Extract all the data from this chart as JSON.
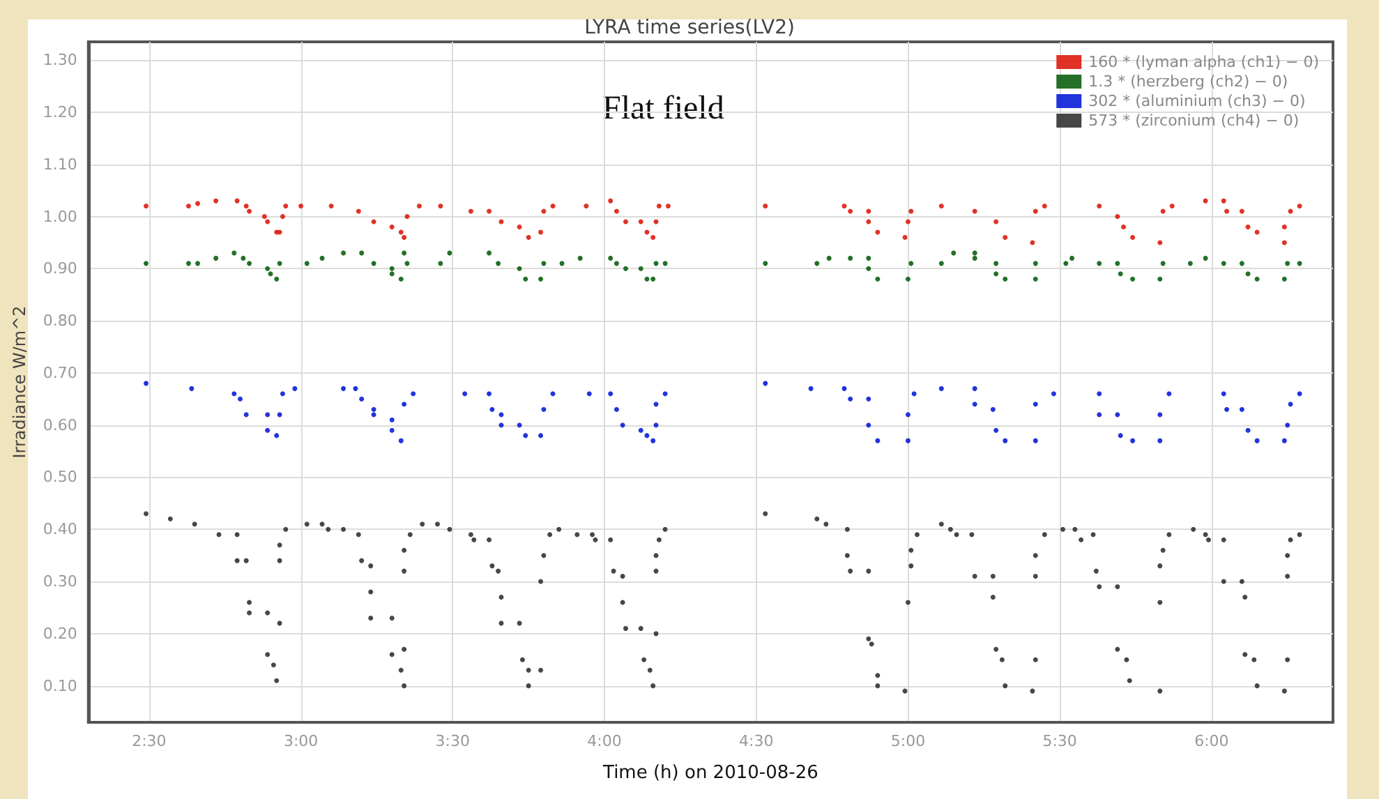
{
  "chart_data": {
    "type": "scatter",
    "title": "LYRA time series(LV2)",
    "xlabel": "Time (h) on 2010-08-26",
    "ylabel": "Irradiance W/m^2",
    "annotations": [
      "Flat field"
    ],
    "xlim": [
      2.3,
      6.4
    ],
    "xticks": [
      {
        "value": 2.5,
        "label": "2:30"
      },
      {
        "value": 3,
        "label": "3:00"
      },
      {
        "value": 3.5,
        "label": "3:30"
      },
      {
        "value": 4,
        "label": "4:00"
      },
      {
        "value": 4.5,
        "label": "4:30"
      },
      {
        "value": 5,
        "label": "5:00"
      },
      {
        "value": 5.5,
        "label": "5:30"
      },
      {
        "value": 6,
        "label": "6:00"
      }
    ],
    "ylim": [
      0.03,
      1.335
    ],
    "yticks": [
      {
        "value": 0.1,
        "label": "0.10"
      },
      {
        "value": 0.2,
        "label": "0.20"
      },
      {
        "value": 0.3,
        "label": "0.30"
      },
      {
        "value": 0.4,
        "label": "0.40"
      },
      {
        "value": 0.5,
        "label": "0.50"
      },
      {
        "value": 0.6,
        "label": "0.60"
      },
      {
        "value": 0.7,
        "label": "0.70"
      },
      {
        "value": 0.8,
        "label": "0.80"
      },
      {
        "value": 0.9,
        "label": "0.90"
      },
      {
        "value": 1.0,
        "label": "1.00"
      },
      {
        "value": 1.1,
        "label": "1.10"
      },
      {
        "value": 1.2,
        "label": "1.20"
      },
      {
        "value": 1.3,
        "label": "1.30"
      }
    ],
    "grid": true,
    "legend": "top right",
    "marker": "circle",
    "series": [
      {
        "name": "160 * (lyman alpha (ch1) − 0)",
        "color": "#dd1c0e",
        "x": [
          2.49,
          2.63,
          2.66,
          2.72,
          2.79,
          2.82,
          2.83,
          2.88,
          2.89,
          2.92,
          2.93,
          2.94,
          2.95,
          3.0,
          3.1,
          3.19,
          3.24,
          3.3,
          3.33,
          3.34,
          3.35,
          3.39,
          3.46,
          3.56,
          3.62,
          3.66,
          3.72,
          3.75,
          3.79,
          3.8,
          3.83,
          3.94,
          4.02,
          4.04,
          4.07,
          4.12,
          4.14,
          4.16,
          4.17,
          4.18,
          4.21,
          4.53,
          4.79,
          4.81,
          4.87,
          4.87,
          4.9,
          4.99,
          5.0,
          5.01,
          5.11,
          5.22,
          5.29,
          5.32,
          5.41,
          5.42,
          5.45,
          5.63,
          5.69,
          5.71,
          5.74,
          5.83,
          5.84,
          5.87,
          5.98,
          6.04,
          6.05,
          6.1,
          6.12,
          6.15,
          6.24,
          6.24,
          6.26,
          6.29
        ],
        "values": [
          1.02,
          1.02,
          1.025,
          1.03,
          1.03,
          1.02,
          1.01,
          1.0,
          0.99,
          0.97,
          0.97,
          1.0,
          1.02,
          1.02,
          1.02,
          1.01,
          0.99,
          0.98,
          0.97,
          0.96,
          1.0,
          1.02,
          1.02,
          1.01,
          1.01,
          0.99,
          0.98,
          0.96,
          0.97,
          1.01,
          1.02,
          1.02,
          1.03,
          1.01,
          0.99,
          0.99,
          0.97,
          0.96,
          0.99,
          1.02,
          1.02,
          1.02,
          1.02,
          1.01,
          1.01,
          0.99,
          0.97,
          0.96,
          0.99,
          1.01,
          1.02,
          1.01,
          0.99,
          0.96,
          0.95,
          1.01,
          1.02,
          1.02,
          1.0,
          0.98,
          0.96,
          0.95,
          1.01,
          1.02,
          1.03,
          1.03,
          1.01,
          1.01,
          0.98,
          0.97,
          0.95,
          0.98,
          1.01,
          1.02
        ]
      },
      {
        "name": "1.3 * (herzberg (ch2) − 0)",
        "color": "#0c6112",
        "x": [
          2.49,
          2.63,
          2.66,
          2.72,
          2.78,
          2.81,
          2.83,
          2.89,
          2.9,
          2.92,
          2.93,
          3.02,
          3.07,
          3.14,
          3.2,
          3.24,
          3.3,
          3.3,
          3.33,
          3.34,
          3.35,
          3.46,
          3.49,
          3.62,
          3.65,
          3.72,
          3.74,
          3.79,
          3.8,
          3.86,
          3.92,
          4.02,
          4.04,
          4.07,
          4.12,
          4.14,
          4.16,
          4.17,
          4.2,
          4.53,
          4.7,
          4.74,
          4.81,
          4.87,
          4.87,
          4.9,
          5.0,
          5.01,
          5.11,
          5.15,
          5.22,
          5.22,
          5.29,
          5.29,
          5.32,
          5.42,
          5.42,
          5.52,
          5.54,
          5.63,
          5.69,
          5.7,
          5.74,
          5.83,
          5.84,
          5.93,
          5.98,
          6.04,
          6.1,
          6.12,
          6.15,
          6.24,
          6.25,
          6.29
        ],
        "values": [
          0.91,
          0.91,
          0.91,
          0.92,
          0.93,
          0.92,
          0.91,
          0.9,
          0.89,
          0.88,
          0.91,
          0.91,
          0.92,
          0.93,
          0.93,
          0.91,
          0.9,
          0.89,
          0.88,
          0.93,
          0.91,
          0.91,
          0.93,
          0.93,
          0.91,
          0.9,
          0.88,
          0.88,
          0.91,
          0.91,
          0.92,
          0.92,
          0.91,
          0.9,
          0.9,
          0.88,
          0.88,
          0.91,
          0.91,
          0.91,
          0.91,
          0.92,
          0.92,
          0.92,
          0.9,
          0.88,
          0.88,
          0.91,
          0.91,
          0.93,
          0.93,
          0.92,
          0.91,
          0.89,
          0.88,
          0.88,
          0.91,
          0.91,
          0.92,
          0.91,
          0.91,
          0.89,
          0.88,
          0.88,
          0.91,
          0.91,
          0.92,
          0.91,
          0.91,
          0.89,
          0.88,
          0.88,
          0.91,
          0.91
        ]
      },
      {
        "name": "302 * (aluminium (ch3) − 0)",
        "color": "#0a1ed8",
        "x": [
          2.49,
          2.64,
          2.78,
          2.8,
          2.82,
          2.89,
          2.89,
          2.92,
          2.93,
          2.94,
          2.98,
          3.14,
          3.18,
          3.2,
          3.24,
          3.24,
          3.3,
          3.3,
          3.33,
          3.34,
          3.37,
          3.54,
          3.62,
          3.63,
          3.66,
          3.66,
          3.72,
          3.74,
          3.79,
          3.8,
          3.83,
          3.95,
          4.02,
          4.04,
          4.06,
          4.12,
          4.14,
          4.16,
          4.17,
          4.17,
          4.2,
          4.53,
          4.68,
          4.79,
          4.81,
          4.87,
          4.87,
          4.9,
          5.0,
          5.0,
          5.02,
          5.11,
          5.22,
          5.22,
          5.28,
          5.29,
          5.32,
          5.42,
          5.42,
          5.48,
          5.63,
          5.63,
          5.69,
          5.7,
          5.74,
          5.83,
          5.83,
          5.86,
          6.04,
          6.05,
          6.1,
          6.12,
          6.15,
          6.24,
          6.25,
          6.26,
          6.29
        ],
        "values": [
          0.68,
          0.67,
          0.66,
          0.65,
          0.62,
          0.62,
          0.59,
          0.58,
          0.62,
          0.66,
          0.67,
          0.67,
          0.67,
          0.65,
          0.63,
          0.62,
          0.61,
          0.59,
          0.57,
          0.64,
          0.66,
          0.66,
          0.66,
          0.63,
          0.62,
          0.6,
          0.6,
          0.58,
          0.58,
          0.63,
          0.66,
          0.66,
          0.66,
          0.63,
          0.6,
          0.59,
          0.58,
          0.57,
          0.6,
          0.64,
          0.66,
          0.68,
          0.67,
          0.67,
          0.65,
          0.65,
          0.6,
          0.57,
          0.57,
          0.62,
          0.66,
          0.67,
          0.67,
          0.64,
          0.63,
          0.59,
          0.57,
          0.57,
          0.64,
          0.66,
          0.66,
          0.62,
          0.62,
          0.58,
          0.57,
          0.57,
          0.62,
          0.66,
          0.66,
          0.63,
          0.63,
          0.59,
          0.57,
          0.57,
          0.6,
          0.64,
          0.66
        ]
      },
      {
        "name": "573 * (zirconium (ch4) − 0)",
        "color": "#333333",
        "x": [
          2.49,
          2.57,
          2.65,
          2.73,
          2.79,
          2.79,
          2.82,
          2.83,
          2.83,
          2.89,
          2.89,
          2.91,
          2.92,
          2.93,
          2.93,
          2.93,
          2.95,
          3.02,
          3.07,
          3.09,
          3.14,
          3.19,
          3.2,
          3.23,
          3.23,
          3.23,
          3.3,
          3.3,
          3.33,
          3.34,
          3.34,
          3.34,
          3.34,
          3.36,
          3.4,
          3.45,
          3.49,
          3.56,
          3.57,
          3.62,
          3.63,
          3.65,
          3.66,
          3.66,
          3.72,
          3.73,
          3.75,
          3.75,
          3.79,
          3.79,
          3.8,
          3.82,
          3.85,
          3.91,
          3.96,
          3.97,
          4.02,
          4.03,
          4.06,
          4.06,
          4.07,
          4.12,
          4.13,
          4.15,
          4.16,
          4.17,
          4.17,
          4.17,
          4.18,
          4.2,
          4.53,
          4.7,
          4.73,
          4.8,
          4.8,
          4.81,
          4.87,
          4.87,
          4.88,
          4.9,
          4.9,
          4.99,
          5.0,
          5.01,
          5.01,
          5.03,
          5.11,
          5.14,
          5.16,
          5.21,
          5.22,
          5.28,
          5.28,
          5.29,
          5.31,
          5.32,
          5.41,
          5.42,
          5.42,
          5.42,
          5.45,
          5.51,
          5.55,
          5.57,
          5.61,
          5.62,
          5.63,
          5.69,
          5.69,
          5.72,
          5.73,
          5.83,
          5.83,
          5.83,
          5.84,
          5.86,
          5.94,
          5.98,
          5.99,
          6.04,
          6.04,
          6.1,
          6.11,
          6.11,
          6.14,
          6.15,
          6.24,
          6.25,
          6.25,
          6.25,
          6.26,
          6.29
        ],
        "values": [
          0.43,
          0.42,
          0.41,
          0.39,
          0.39,
          0.34,
          0.34,
          0.26,
          0.24,
          0.24,
          0.16,
          0.14,
          0.11,
          0.22,
          0.34,
          0.37,
          0.4,
          0.41,
          0.41,
          0.4,
          0.4,
          0.39,
          0.34,
          0.33,
          0.28,
          0.23,
          0.23,
          0.16,
          0.13,
          0.1,
          0.17,
          0.32,
          0.36,
          0.39,
          0.41,
          0.41,
          0.4,
          0.39,
          0.38,
          0.38,
          0.33,
          0.32,
          0.27,
          0.22,
          0.22,
          0.15,
          0.13,
          0.1,
          0.13,
          0.3,
          0.35,
          0.39,
          0.4,
          0.39,
          0.39,
          0.38,
          0.38,
          0.32,
          0.31,
          0.26,
          0.21,
          0.21,
          0.15,
          0.13,
          0.1,
          0.2,
          0.32,
          0.35,
          0.38,
          0.4,
          0.43,
          0.42,
          0.41,
          0.4,
          0.35,
          0.32,
          0.32,
          0.19,
          0.18,
          0.12,
          0.1,
          0.09,
          0.26,
          0.33,
          0.36,
          0.39,
          0.41,
          0.4,
          0.39,
          0.39,
          0.31,
          0.31,
          0.27,
          0.17,
          0.15,
          0.1,
          0.09,
          0.15,
          0.31,
          0.35,
          0.39,
          0.4,
          0.4,
          0.38,
          0.39,
          0.32,
          0.29,
          0.29,
          0.17,
          0.15,
          0.11,
          0.09,
          0.26,
          0.33,
          0.36,
          0.39,
          0.4,
          0.39,
          0.38,
          0.38,
          0.3,
          0.3,
          0.27,
          0.16,
          0.15,
          0.1,
          0.09,
          0.15,
          0.31,
          0.35,
          0.38,
          0.39
        ]
      }
    ]
  }
}
